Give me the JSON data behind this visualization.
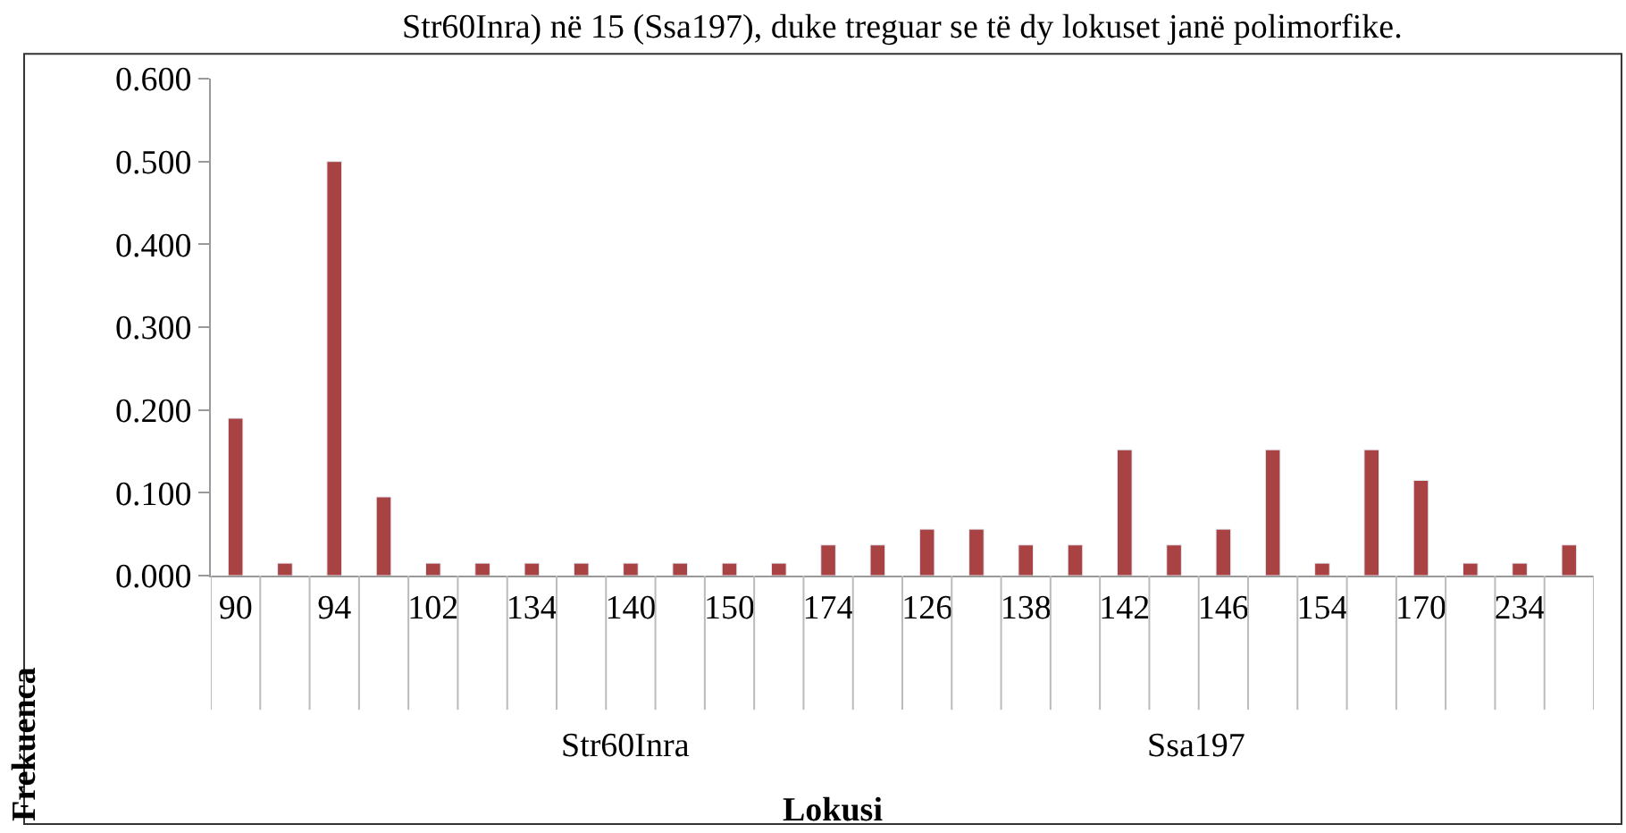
{
  "chart_data": {
    "type": "bar",
    "title": "Str60Inra) në 15 (Ssa197), duke treguar se të dy lokuset janë polimorfike.",
    "xlabel": "Lokusi",
    "ylabel": "Frekuenca",
    "categories": [
      "90",
      null,
      "94",
      null,
      "102",
      null,
      "134",
      null,
      "140",
      null,
      "150",
      null,
      "174",
      null,
      "126",
      null,
      "138",
      null,
      "142",
      null,
      "146",
      null,
      "154",
      null,
      "170",
      null,
      "234",
      null
    ],
    "values": [
      0.19,
      0.015,
      0.5,
      0.095,
      0.015,
      0.015,
      0.015,
      0.015,
      0.015,
      0.015,
      0.015,
      0.015,
      0.037,
      0.037,
      0.056,
      0.056,
      0.037,
      0.037,
      0.152,
      0.037,
      0.056,
      0.152,
      0.015,
      0.152,
      0.115,
      0.015,
      0.015,
      0.037
    ],
    "color": "#a94343",
    "ylim": [
      0,
      0.6
    ],
    "yticks": [
      {
        "value": 0,
        "label": "0.000"
      },
      {
        "value": 0.1,
        "label": "0.100"
      },
      {
        "value": 0.2,
        "label": "0.200"
      },
      {
        "value": 0.3,
        "label": "0.300"
      },
      {
        "value": 0.4,
        "label": "0.400"
      },
      {
        "value": 0.5,
        "label": "0.500"
      },
      {
        "value": 0.6,
        "label": "0.600"
      }
    ],
    "annotations": [
      "Str60Inra",
      "Ssa197"
    ],
    "legend": false
  }
}
